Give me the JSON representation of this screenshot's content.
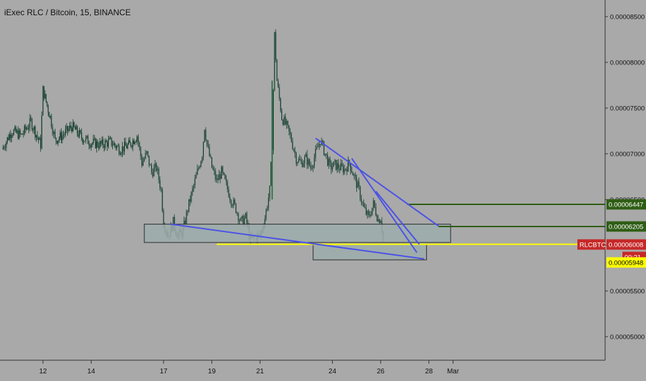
{
  "title": "iExec RLC / Bitcoin, 15, BINANCE",
  "chart_data": {
    "type": "candlestick",
    "title": "iExec RLC / Bitcoin, 15, BINANCE",
    "symbol": "RLCBTC",
    "timeframe": "15",
    "exchange": "BINANCE",
    "ylim": [
      4.7e-05,
      8.8e-05
    ],
    "grid": false,
    "y_ticks": [
      "0.00005000",
      "0.00005500",
      "0.00006000",
      "0.00006500",
      "0.00007000",
      "0.00007500",
      "0.00008000",
      "0.00008500"
    ],
    "x_ticks": [
      {
        "label": "12",
        "day": 12
      },
      {
        "label": "14",
        "day": 14
      },
      {
        "label": "17",
        "day": 17
      },
      {
        "label": "19",
        "day": 19
      },
      {
        "label": "21",
        "day": 21
      },
      {
        "label": "24",
        "day": 24
      },
      {
        "label": "26",
        "day": 26
      },
      {
        "label": "28",
        "day": 28
      },
      {
        "label": "Mar",
        "day": 29
      }
    ],
    "price_path": [
      [
        10.3,
        7.05e-05
      ],
      [
        10.7,
        7.25e-05
      ],
      [
        11.1,
        7.2e-05
      ],
      [
        11.5,
        7.35e-05
      ],
      [
        11.9,
        7.1e-05
      ],
      [
        12.0,
        7.7e-05
      ],
      [
        12.3,
        7.4e-05
      ],
      [
        12.5,
        7.15e-05
      ],
      [
        12.8,
        7.2e-05
      ],
      [
        13.2,
        7.3e-05
      ],
      [
        13.6,
        7.18e-05
      ],
      [
        14.0,
        7.12e-05
      ],
      [
        14.4,
        7.1e-05
      ],
      [
        14.8,
        7.13e-05
      ],
      [
        15.2,
        7.05e-05
      ],
      [
        15.6,
        7.1e-05
      ],
      [
        15.9,
        7.2e-05
      ],
      [
        16.1,
        6.9e-05
      ],
      [
        16.3,
        7e-05
      ],
      [
        16.5,
        6.8e-05
      ],
      [
        16.7,
        6.85e-05
      ],
      [
        16.9,
        6.6e-05
      ],
      [
        17.0,
        6.25e-05
      ],
      [
        17.2,
        6.1e-05
      ],
      [
        17.4,
        6.25e-05
      ],
      [
        17.6,
        6.1e-05
      ],
      [
        17.8,
        6.15e-05
      ],
      [
        18.0,
        6.4e-05
      ],
      [
        18.2,
        6.6e-05
      ],
      [
        18.4,
        6.8e-05
      ],
      [
        18.6,
        7e-05
      ],
      [
        18.7,
        7.3e-05
      ],
      [
        18.8,
        7.1e-05
      ],
      [
        19.0,
        6.85e-05
      ],
      [
        19.2,
        6.7e-05
      ],
      [
        19.4,
        6.8e-05
      ],
      [
        19.6,
        6.65e-05
      ],
      [
        19.8,
        6.5e-05
      ],
      [
        20.0,
        6.4e-05
      ],
      [
        20.2,
        6.25e-05
      ],
      [
        20.4,
        6.3e-05
      ],
      [
        20.6,
        6.05e-05
      ],
      [
        20.8,
        6.1e-05
      ],
      [
        21.0,
        6.1e-05
      ],
      [
        21.2,
        6.3e-05
      ],
      [
        21.4,
        6.6e-05
      ],
      [
        21.5,
        7.1e-05
      ],
      [
        21.6,
        8.3e-05
      ],
      [
        21.7,
        7.8e-05
      ],
      [
        21.9,
        7.4e-05
      ],
      [
        22.1,
        7.3e-05
      ],
      [
        22.3,
        7.15e-05
      ],
      [
        22.5,
        6.95e-05
      ],
      [
        22.7,
        6.9e-05
      ],
      [
        22.9,
        6.95e-05
      ],
      [
        23.1,
        6.85e-05
      ],
      [
        23.3,
        7e-05
      ],
      [
        23.5,
        7.15e-05
      ],
      [
        23.7,
        7e-05
      ],
      [
        23.9,
        6.85e-05
      ],
      [
        24.1,
        6.88e-05
      ],
      [
        24.3,
        6.85e-05
      ],
      [
        24.5,
        6.83e-05
      ],
      [
        24.7,
        6.9e-05
      ],
      [
        24.9,
        6.75e-05
      ],
      [
        25.1,
        6.6e-05
      ],
      [
        25.3,
        6.4e-05
      ],
      [
        25.5,
        6.3e-05
      ],
      [
        25.7,
        6.45e-05
      ],
      [
        25.9,
        6.28e-05
      ],
      [
        26.0,
        6.3e-05
      ],
      [
        26.1,
        6.08e-05
      ]
    ],
    "spike_high": 8.32e-05,
    "zones": [
      {
        "x1": 16.2,
        "x2": 28.9,
        "y1": 6.23e-05,
        "y2": 6.03e-05
      },
      {
        "x1": 23.2,
        "x2": 27.9,
        "y1": 6.01e-05,
        "y2": 5.84e-05
      }
    ],
    "trendlines": [
      {
        "x1": 17.3,
        "y1": 6.23e-05,
        "x2": 27.8,
        "y2": 5.85e-05
      },
      {
        "x1": 23.3,
        "y1": 7.17e-05,
        "x2": 28.4,
        "y2": 6.21e-05
      },
      {
        "x1": 24.8,
        "y1": 6.95e-05,
        "x2": 27.5,
        "y2": 5.92e-05
      },
      {
        "x1": 25.8,
        "y1": 6.59e-05,
        "x2": 27.6,
        "y2": 6.01e-05
      }
    ],
    "horizontal_levels": [
      {
        "price": 6.447e-05,
        "x_start": 27.1,
        "color": "#2e5d14",
        "label": "0.00006447"
      },
      {
        "price": 6.205e-05,
        "x_start": 28.4,
        "color": "#2e5d14",
        "label": "0.00006205"
      },
      {
        "price": 6.01e-05,
        "x_start": 19.2,
        "color": "#ffff00",
        "label": ""
      }
    ],
    "last_price": {
      "symbol_tag": "RLCBTC",
      "value": "0.00006008",
      "countdown": "00:21",
      "color": "#c62828"
    },
    "marker": {
      "value": "0.00005948",
      "color": "#ffff00"
    },
    "colors": {
      "background": "#a9a9a9",
      "candle": "#0f3b2a",
      "zone_fill": "#9eadad",
      "zone_border": "#2a2a2a",
      "trendline": "#4b52e6",
      "axis": "#333333"
    }
  }
}
